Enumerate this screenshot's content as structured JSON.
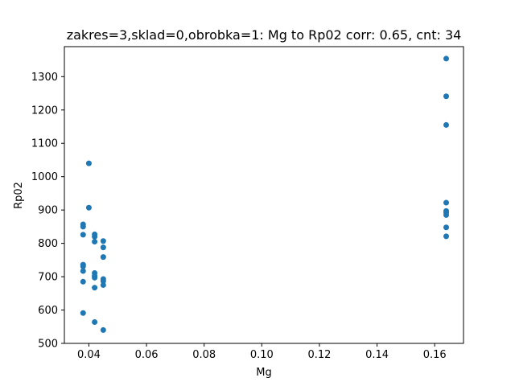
{
  "chart_data": {
    "type": "scatter",
    "title": "zakres=3,sklad=0,obrobka=1: Mg to Rp02 corr: 0.65, cnt: 34",
    "xlabel": "Mg",
    "ylabel": "Rp02",
    "xlim": [
      0.0315,
      0.17
    ],
    "ylim": [
      500,
      1390
    ],
    "xticks": [
      0.04,
      0.06,
      0.08,
      0.1,
      0.12,
      0.14,
      0.16
    ],
    "xtick_labels": [
      "0.04",
      "0.06",
      "0.08",
      "0.10",
      "0.12",
      "0.14",
      "0.16"
    ],
    "yticks": [
      500,
      600,
      700,
      800,
      900,
      1000,
      1100,
      1200,
      1300
    ],
    "ytick_labels": [
      "500",
      "600",
      "700",
      "800",
      "900",
      "1000",
      "1100",
      "1200",
      "1300"
    ],
    "grid": false,
    "marker_color": "#1f77b4",
    "points": [
      {
        "x": 0.038,
        "y": 857
      },
      {
        "x": 0.038,
        "y": 850
      },
      {
        "x": 0.038,
        "y": 826
      },
      {
        "x": 0.038,
        "y": 736
      },
      {
        "x": 0.038,
        "y": 731
      },
      {
        "x": 0.038,
        "y": 717
      },
      {
        "x": 0.038,
        "y": 685
      },
      {
        "x": 0.038,
        "y": 591
      },
      {
        "x": 0.04,
        "y": 1040
      },
      {
        "x": 0.04,
        "y": 907
      },
      {
        "x": 0.042,
        "y": 827
      },
      {
        "x": 0.042,
        "y": 820
      },
      {
        "x": 0.042,
        "y": 805
      },
      {
        "x": 0.042,
        "y": 711
      },
      {
        "x": 0.042,
        "y": 702
      },
      {
        "x": 0.042,
        "y": 697
      },
      {
        "x": 0.042,
        "y": 667
      },
      {
        "x": 0.042,
        "y": 564
      },
      {
        "x": 0.045,
        "y": 807
      },
      {
        "x": 0.045,
        "y": 788
      },
      {
        "x": 0.045,
        "y": 759
      },
      {
        "x": 0.045,
        "y": 693
      },
      {
        "x": 0.045,
        "y": 687
      },
      {
        "x": 0.045,
        "y": 675
      },
      {
        "x": 0.045,
        "y": 540
      },
      {
        "x": 0.164,
        "y": 1354
      },
      {
        "x": 0.164,
        "y": 1241
      },
      {
        "x": 0.164,
        "y": 1155
      },
      {
        "x": 0.164,
        "y": 922
      },
      {
        "x": 0.164,
        "y": 897
      },
      {
        "x": 0.164,
        "y": 892
      },
      {
        "x": 0.164,
        "y": 885
      },
      {
        "x": 0.164,
        "y": 848
      },
      {
        "x": 0.164,
        "y": 821
      }
    ]
  }
}
